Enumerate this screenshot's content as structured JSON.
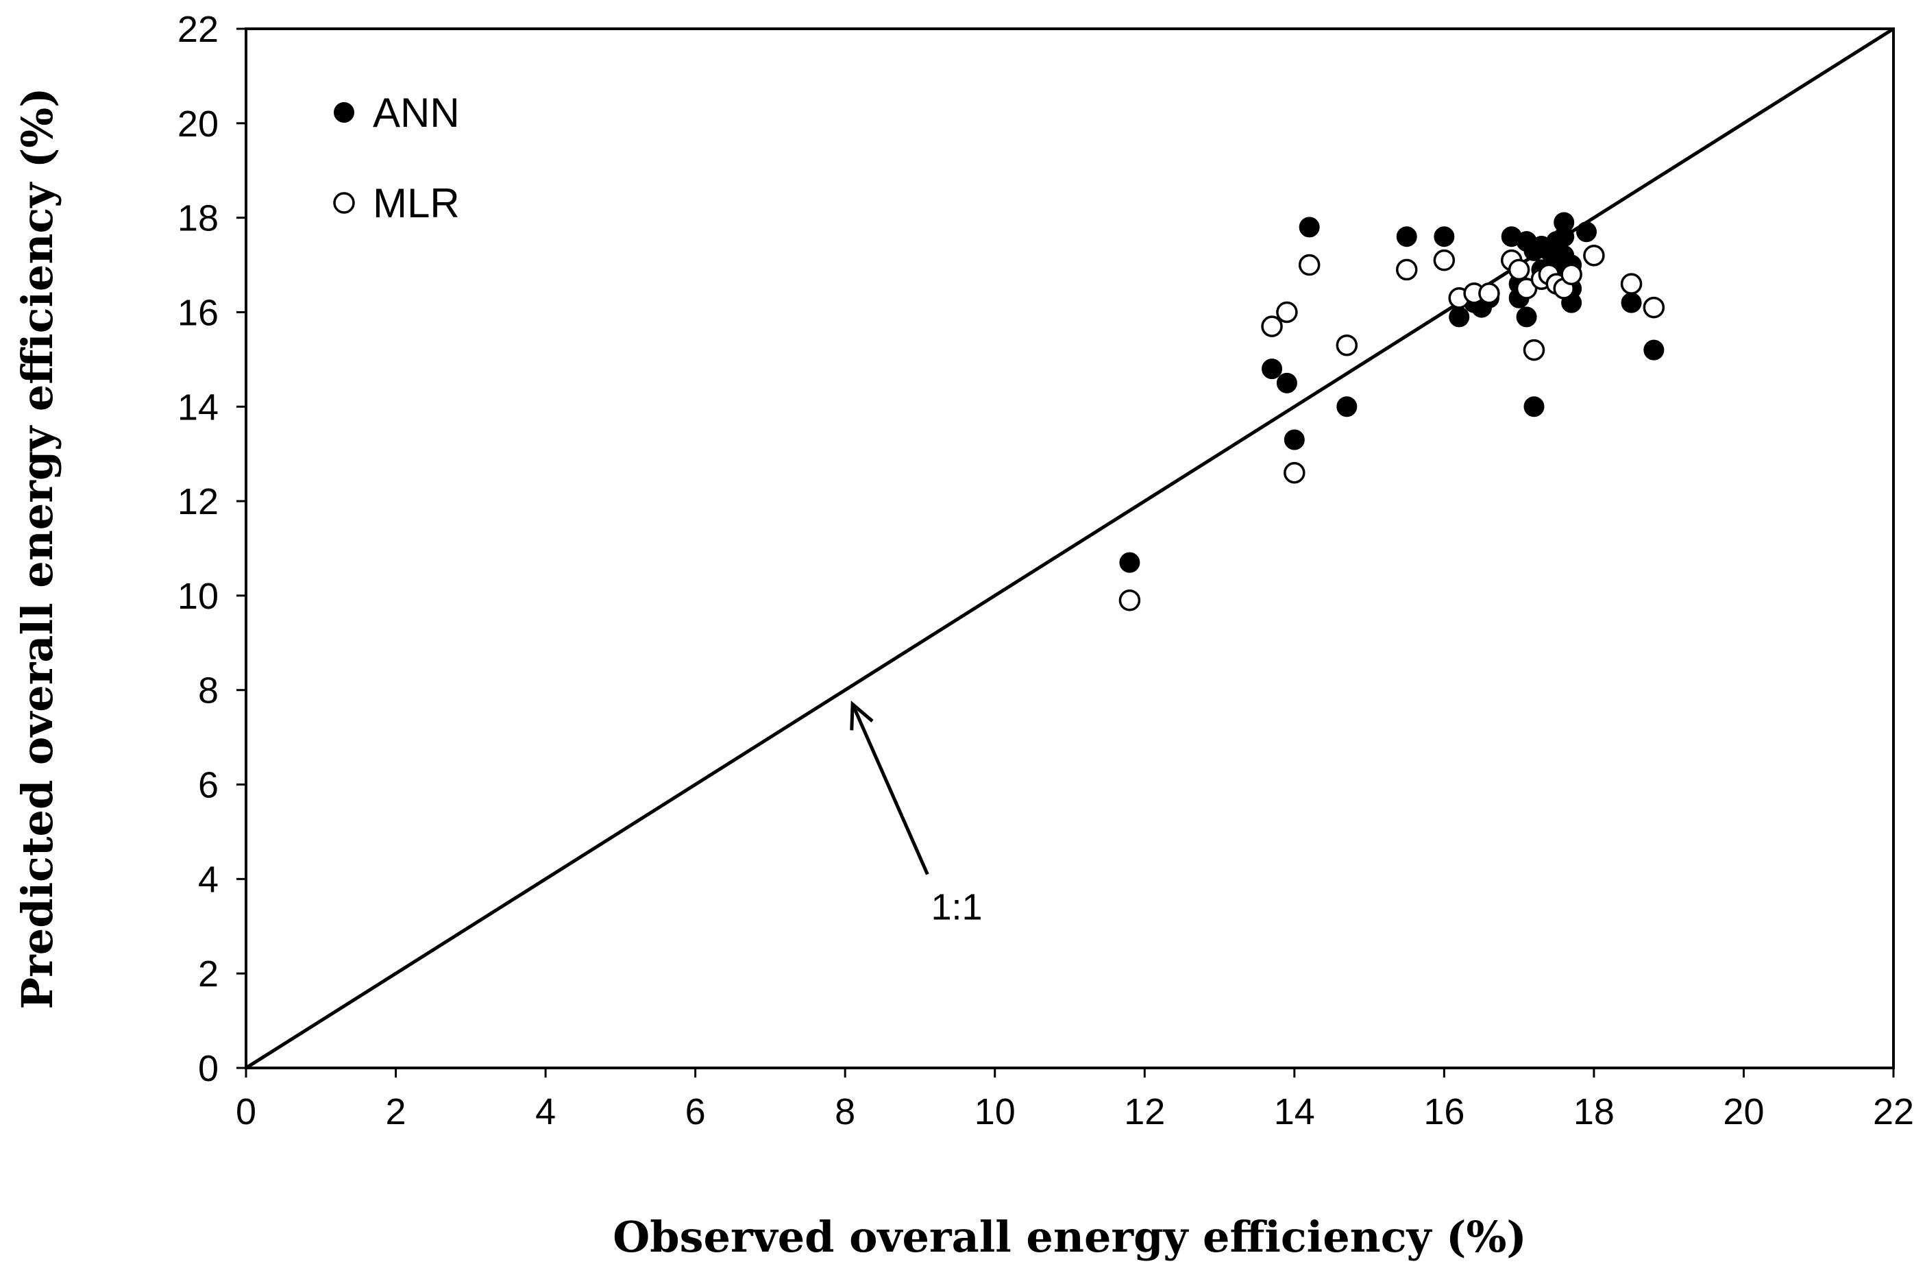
{
  "chart_data": {
    "type": "scatter",
    "title": "",
    "xlabel": "Observed overall energy efficiency (%)",
    "ylabel": "Predicted overall  energy efficiency (%)",
    "xlim": [
      0,
      22
    ],
    "ylim": [
      0,
      22
    ],
    "xticks": [
      "0",
      "2",
      "4",
      "6",
      "8",
      "10",
      "12",
      "14",
      "16",
      "18",
      "20",
      "22"
    ],
    "yticks": [
      "0",
      "2",
      "4",
      "6",
      "8",
      "10",
      "12",
      "14",
      "16",
      "18",
      "20",
      "22"
    ],
    "grid": false,
    "legend_position": "top-left",
    "reference_line": {
      "label": "1:1",
      "from": [
        0,
        0
      ],
      "to": [
        22,
        22
      ]
    },
    "annotation": {
      "text": "1:1",
      "arrow_tip": [
        8.1,
        7.7
      ],
      "arrow_tail": [
        9.1,
        4.1
      ],
      "text_at": [
        9.6,
        3.4
      ]
    },
    "series": [
      {
        "name": "ANN",
        "marker": "filled-circle",
        "color": "#000000",
        "points": [
          [
            11.8,
            10.7
          ],
          [
            13.7,
            14.8
          ],
          [
            13.9,
            14.5
          ],
          [
            14.0,
            13.3
          ],
          [
            14.2,
            17.8
          ],
          [
            14.7,
            14.0
          ],
          [
            15.5,
            17.6
          ],
          [
            16.0,
            17.6
          ],
          [
            16.2,
            15.9
          ],
          [
            16.4,
            16.2
          ],
          [
            16.5,
            16.1
          ],
          [
            16.6,
            16.3
          ],
          [
            16.9,
            17.6
          ],
          [
            17.0,
            16.6
          ],
          [
            17.0,
            16.3
          ],
          [
            17.1,
            15.9
          ],
          [
            17.1,
            17.5
          ],
          [
            17.2,
            14.0
          ],
          [
            17.2,
            17.3
          ],
          [
            17.3,
            17.4
          ],
          [
            17.3,
            16.9
          ],
          [
            17.4,
            17.3
          ],
          [
            17.5,
            17.5
          ],
          [
            17.5,
            17.0
          ],
          [
            17.5,
            16.8
          ],
          [
            17.6,
            17.9
          ],
          [
            17.6,
            17.6
          ],
          [
            17.6,
            17.2
          ],
          [
            17.7,
            17.0
          ],
          [
            17.7,
            16.5
          ],
          [
            17.7,
            16.2
          ],
          [
            17.9,
            17.7
          ],
          [
            18.5,
            16.2
          ],
          [
            18.8,
            15.2
          ]
        ]
      },
      {
        "name": "MLR",
        "marker": "open-circle",
        "color": "#000000",
        "points": [
          [
            11.8,
            9.9
          ],
          [
            13.7,
            15.7
          ],
          [
            13.9,
            16.0
          ],
          [
            14.0,
            12.6
          ],
          [
            14.2,
            17.0
          ],
          [
            14.7,
            15.3
          ],
          [
            15.5,
            16.9
          ],
          [
            16.0,
            17.1
          ],
          [
            16.2,
            16.3
          ],
          [
            16.4,
            16.4
          ],
          [
            16.6,
            16.4
          ],
          [
            16.9,
            17.1
          ],
          [
            17.0,
            16.9
          ],
          [
            17.1,
            16.5
          ],
          [
            17.2,
            15.2
          ],
          [
            17.3,
            16.7
          ],
          [
            17.4,
            16.8
          ],
          [
            17.5,
            16.6
          ],
          [
            17.6,
            16.5
          ],
          [
            17.7,
            16.8
          ],
          [
            18.0,
            17.2
          ],
          [
            18.5,
            16.6
          ],
          [
            18.8,
            16.1
          ]
        ]
      }
    ]
  }
}
